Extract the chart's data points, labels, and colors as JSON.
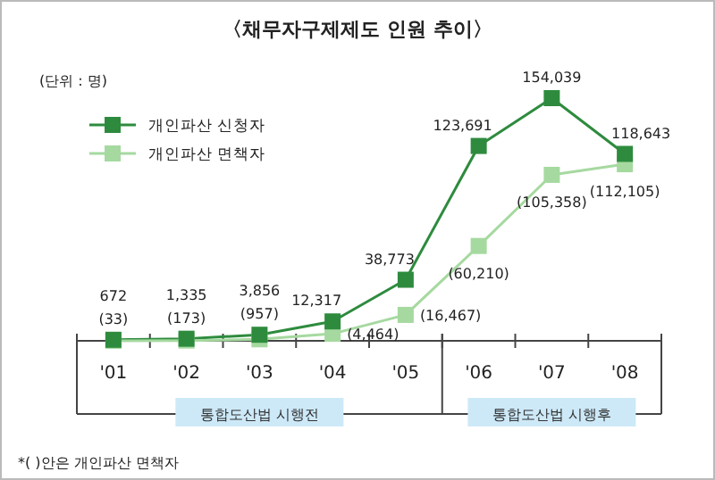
{
  "chart_data": {
    "type": "line",
    "title": "〈채무자구제제도 인원 추이〉",
    "categories": [
      "'01",
      "'02",
      "'03",
      "'04",
      "'05",
      "'06",
      "'07",
      "'08"
    ],
    "series": [
      {
        "name": "개인파산 신청자",
        "color": "#2e8b3e",
        "values": [
          672,
          1335,
          3856,
          12317,
          38773,
          123691,
          154039,
          118643
        ],
        "value_labels": [
          "672",
          "1,335",
          "3,856",
          "12,317",
          "38,773",
          "123,691",
          "154,039",
          "118,643"
        ]
      },
      {
        "name": "개인파산 면책자",
        "color": "#a6d9a0",
        "values": [
          33,
          173,
          957,
          4464,
          16467,
          60210,
          105358,
          112105
        ],
        "value_labels": [
          "(33)",
          "(173)",
          "(957)",
          "(4,464)",
          "(16,467)",
          "(60,210)",
          "(105,358)",
          "(112,105)"
        ]
      }
    ],
    "annotations": [
      "(단위 : 명)",
      "*(  )안은 개인파산 면책자",
      "통합도산법 시행전",
      "통합도산법 시행후"
    ],
    "marker": "square",
    "legend": "top left"
  }
}
